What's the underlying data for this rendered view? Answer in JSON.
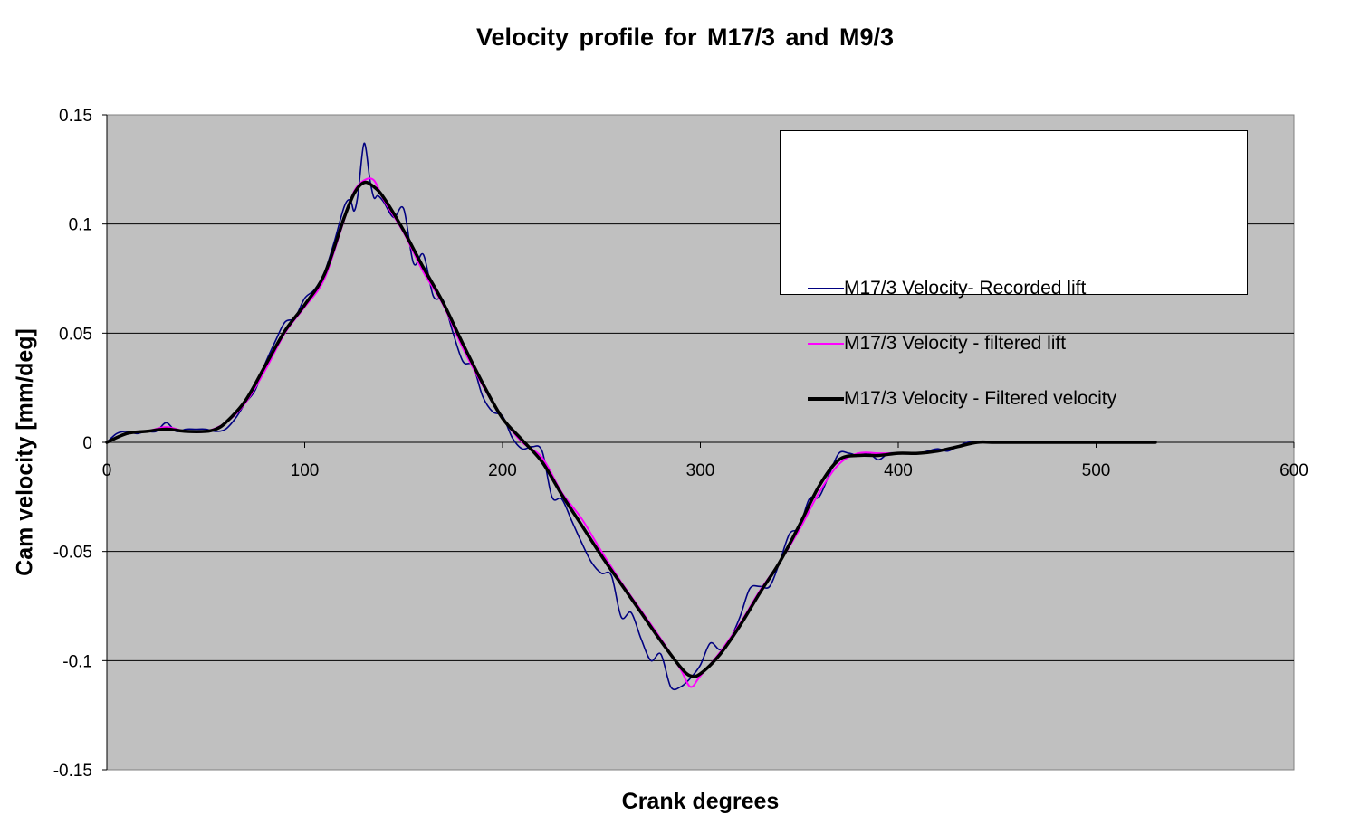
{
  "chart_data": {
    "type": "line",
    "title": "Velocity profile for M17/3 and M9/3",
    "xlabel": "Crank degrees",
    "ylabel": "Cam velocity [mm/deg]",
    "xlim": [
      0,
      600
    ],
    "ylim": [
      -0.15,
      0.15
    ],
    "x_ticks": [
      0,
      100,
      200,
      300,
      400,
      500,
      600
    ],
    "y_ticks": [
      0.15,
      0.1,
      0.05,
      0,
      -0.05,
      -0.1,
      -0.15
    ],
    "grid": "horizontal",
    "plot_background": "#c0c0c0",
    "legend_position": "top-right",
    "series": [
      {
        "name": "M17/3 Velocity- Recorded lift",
        "color": "#000080",
        "x": [
          0,
          5,
          10,
          15,
          20,
          25,
          30,
          35,
          40,
          45,
          50,
          55,
          60,
          65,
          70,
          75,
          80,
          85,
          90,
          95,
          100,
          105,
          110,
          115,
          120,
          123,
          125,
          127,
          130,
          133,
          135,
          137,
          140,
          145,
          150,
          155,
          160,
          165,
          170,
          175,
          180,
          185,
          190,
          195,
          200,
          205,
          210,
          215,
          220,
          225,
          230,
          235,
          240,
          245,
          250,
          255,
          260,
          265,
          270,
          275,
          280,
          285,
          290,
          295,
          300,
          305,
          310,
          315,
          320,
          325,
          330,
          335,
          340,
          345,
          350,
          355,
          360,
          365,
          370,
          375,
          380,
          385,
          390,
          395,
          400,
          405,
          410,
          415,
          420,
          425,
          430,
          435,
          440,
          450,
          460,
          480,
          500,
          530
        ],
        "y": [
          0.0,
          0.004,
          0.005,
          0.004,
          0.005,
          0.005,
          0.009,
          0.005,
          0.006,
          0.006,
          0.006,
          0.005,
          0.006,
          0.011,
          0.018,
          0.024,
          0.036,
          0.046,
          0.055,
          0.057,
          0.066,
          0.07,
          0.078,
          0.092,
          0.108,
          0.111,
          0.106,
          0.114,
          0.137,
          0.12,
          0.112,
          0.113,
          0.11,
          0.103,
          0.107,
          0.082,
          0.086,
          0.067,
          0.065,
          0.05,
          0.037,
          0.035,
          0.021,
          0.014,
          0.012,
          0.002,
          -0.003,
          -0.002,
          -0.004,
          -0.025,
          -0.026,
          -0.036,
          -0.046,
          -0.055,
          -0.06,
          -0.061,
          -0.08,
          -0.078,
          -0.09,
          -0.1,
          -0.097,
          -0.112,
          -0.112,
          -0.108,
          -0.102,
          -0.092,
          -0.095,
          -0.09,
          -0.08,
          -0.067,
          -0.066,
          -0.066,
          -0.055,
          -0.042,
          -0.039,
          -0.026,
          -0.025,
          -0.015,
          -0.005,
          -0.005,
          -0.006,
          -0.005,
          -0.008,
          -0.005,
          -0.005,
          -0.005,
          -0.005,
          -0.004,
          -0.003,
          -0.004,
          -0.002,
          0.0,
          0.0,
          0.0,
          0.0,
          0.0,
          0.0,
          0.0
        ]
      },
      {
        "name": "M17/3 Velocity - filtered lift",
        "color": "#ff00ff",
        "x": [
          0,
          10,
          20,
          30,
          40,
          50,
          60,
          70,
          80,
          90,
          100,
          110,
          120,
          125,
          130,
          135,
          140,
          150,
          160,
          170,
          180,
          190,
          200,
          210,
          220,
          230,
          240,
          250,
          260,
          270,
          280,
          290,
          295,
          300,
          310,
          320,
          330,
          340,
          350,
          360,
          370,
          380,
          390,
          400,
          410,
          420,
          430,
          440,
          450,
          480,
          500,
          530
        ],
        "y": [
          0.0,
          0.004,
          0.005,
          0.007,
          0.005,
          0.005,
          0.009,
          0.018,
          0.033,
          0.05,
          0.062,
          0.075,
          0.102,
          0.115,
          0.12,
          0.12,
          0.111,
          0.096,
          0.078,
          0.063,
          0.043,
          0.026,
          0.011,
          0.0,
          -0.007,
          -0.023,
          -0.035,
          -0.05,
          -0.064,
          -0.077,
          -0.09,
          -0.104,
          -0.112,
          -0.107,
          -0.096,
          -0.083,
          -0.068,
          -0.055,
          -0.04,
          -0.023,
          -0.01,
          -0.005,
          -0.005,
          -0.005,
          -0.005,
          -0.004,
          -0.002,
          0.0,
          0.0,
          0.0,
          0.0,
          0.0
        ]
      },
      {
        "name": "M17/3 Velocity - Filtered velocity",
        "color": "#000000",
        "x": [
          0,
          10,
          20,
          30,
          40,
          50,
          55,
          60,
          70,
          80,
          90,
          100,
          110,
          120,
          125,
          130,
          135,
          140,
          150,
          160,
          170,
          180,
          190,
          200,
          210,
          220,
          230,
          240,
          250,
          260,
          270,
          280,
          290,
          295,
          300,
          310,
          320,
          330,
          340,
          350,
          360,
          370,
          380,
          390,
          400,
          410,
          420,
          430,
          440,
          450,
          480,
          500,
          530
        ],
        "y": [
          0.0,
          0.004,
          0.005,
          0.006,
          0.005,
          0.005,
          0.006,
          0.009,
          0.019,
          0.035,
          0.051,
          0.063,
          0.077,
          0.103,
          0.114,
          0.119,
          0.117,
          0.112,
          0.097,
          0.08,
          0.064,
          0.045,
          0.027,
          0.011,
          0.001,
          -0.009,
          -0.024,
          -0.038,
          -0.052,
          -0.065,
          -0.078,
          -0.091,
          -0.103,
          -0.107,
          -0.106,
          -0.097,
          -0.084,
          -0.069,
          -0.055,
          -0.038,
          -0.02,
          -0.008,
          -0.006,
          -0.006,
          -0.005,
          -0.005,
          -0.004,
          -0.002,
          0.0,
          0.0,
          0.0,
          0.0,
          0.0
        ]
      }
    ]
  }
}
